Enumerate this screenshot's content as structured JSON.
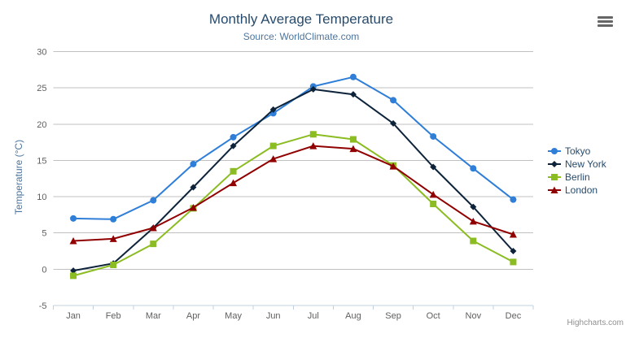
{
  "header": {
    "title": "Monthly Average Temperature",
    "subtitle": "Source: WorldClimate.com"
  },
  "credits": "Highcharts.com",
  "colors": {
    "title": "#274b6d",
    "subtitle": "#4d759e",
    "axis_labels": "#606060",
    "gridline": "#C0C0C0",
    "axis_line": "#C0D0E0",
    "legend_text": "#274b6d",
    "credits_text": "#909090"
  },
  "chart_data": {
    "type": "line",
    "title": "Monthly Average Temperature",
    "subtitle": "Source: WorldClimate.com",
    "categories": [
      "Jan",
      "Feb",
      "Mar",
      "Apr",
      "May",
      "Jun",
      "Jul",
      "Aug",
      "Sep",
      "Oct",
      "Nov",
      "Dec"
    ],
    "series": [
      {
        "name": "Tokyo",
        "color": "#2f7ed8",
        "marker": "circle",
        "values": [
          7.0,
          6.9,
          9.5,
          14.5,
          18.2,
          21.5,
          25.2,
          26.5,
          23.3,
          18.3,
          13.9,
          9.6
        ]
      },
      {
        "name": "New York",
        "color": "#0d233a",
        "marker": "diamond",
        "values": [
          -0.2,
          0.8,
          5.7,
          11.3,
          17.0,
          22.0,
          24.8,
          24.1,
          20.1,
          14.1,
          8.6,
          2.5
        ]
      },
      {
        "name": "Berlin",
        "color": "#8bbc21",
        "marker": "square",
        "values": [
          -0.9,
          0.6,
          3.5,
          8.4,
          13.5,
          17.0,
          18.6,
          17.9,
          14.3,
          9.0,
          3.9,
          1.0
        ]
      },
      {
        "name": "London",
        "color": "#910000",
        "marker": "triangle",
        "values": [
          3.9,
          4.2,
          5.7,
          8.5,
          11.9,
          15.2,
          17.0,
          16.6,
          14.2,
          10.3,
          6.6,
          4.8
        ]
      }
    ],
    "xlabel": "",
    "ylabel": "Temperature (°C)",
    "ylim": [
      -5,
      30
    ],
    "ytick_interval": 5,
    "yticks": [
      -5,
      0,
      5,
      10,
      15,
      20,
      25,
      30
    ],
    "grid": true,
    "legend_position": "right"
  }
}
